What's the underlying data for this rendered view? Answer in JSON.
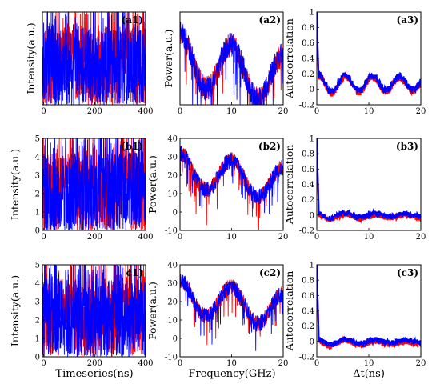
{
  "figure": {
    "xlabels": [
      "Timeseries(ns)",
      "Frequency(GHz)",
      "Δt(ns)"
    ]
  },
  "chart_data": [
    {
      "id": "a1",
      "type": "line",
      "label": "(a1)",
      "ylabel": "Intensity(a.u.)",
      "xlim": [
        -5,
        400
      ],
      "ylim": [
        0,
        4.2
      ],
      "xticks": [
        0,
        200,
        400
      ],
      "yticks": [],
      "style": "noise-time",
      "series": [
        {
          "color": "#ff0000"
        },
        {
          "color": "#0000ff"
        }
      ]
    },
    {
      "id": "a2",
      "type": "line",
      "label": "(a2)",
      "ylabel": "Power(a.u.)",
      "xlim": [
        0,
        20
      ],
      "ylim": [
        6,
        40
      ],
      "xticks": [
        0,
        10,
        20
      ],
      "yticks": [],
      "style": "spectrum",
      "series": [
        {
          "color": "#ff0000"
        },
        {
          "color": "#0000ff"
        }
      ]
    },
    {
      "id": "a3",
      "type": "line",
      "label": "(a3)",
      "ylabel": "Autocorrelation",
      "xlim": [
        0,
        20
      ],
      "ylim": [
        -0.2,
        1
      ],
      "xticks": [
        0,
        10,
        20
      ],
      "yticks": [
        -0.2,
        0,
        0.2,
        0.4,
        0.6,
        0.8,
        1
      ],
      "style": "acf-strong",
      "series": [
        {
          "color": "#ff0000"
        },
        {
          "color": "#0000ff"
        }
      ]
    },
    {
      "id": "b1",
      "type": "line",
      "label": "(b1)",
      "ylabel": "Intensity(a.u.)",
      "xlim": [
        -5,
        400
      ],
      "ylim": [
        0,
        5
      ],
      "xticks": [
        0,
        200,
        400
      ],
      "yticks": [
        0,
        1,
        2,
        3,
        4,
        5
      ],
      "style": "noise-time",
      "series": [
        {
          "color": "#ff0000"
        },
        {
          "color": "#0000ff"
        }
      ]
    },
    {
      "id": "b2",
      "type": "line",
      "label": "(b2)",
      "ylabel": "Power(a.u.)",
      "xlim": [
        0,
        20
      ],
      "ylim": [
        -10,
        40
      ],
      "xticks": [
        0,
        10,
        20
      ],
      "yticks": [
        -10,
        0,
        10,
        20,
        30,
        40
      ],
      "style": "spectrum",
      "series": [
        {
          "color": "#ff0000"
        },
        {
          "color": "#0000ff"
        }
      ]
    },
    {
      "id": "b3",
      "type": "line",
      "label": "(b3)",
      "ylabel": "Autocorrelation",
      "xlim": [
        0,
        20
      ],
      "ylim": [
        -0.2,
        1
      ],
      "xticks": [
        0,
        10,
        20
      ],
      "yticks": [
        -0.2,
        0,
        0.2,
        0.4,
        0.6,
        0.8,
        1
      ],
      "style": "acf-weak",
      "series": [
        {
          "color": "#ff0000"
        },
        {
          "color": "#0000ff"
        }
      ]
    },
    {
      "id": "c1",
      "type": "line",
      "label": "c1)",
      "ylabel": "Intensity(a.u.)",
      "xlim": [
        -5,
        400
      ],
      "ylim": [
        0,
        5
      ],
      "xticks": [
        0,
        200,
        400
      ],
      "yticks": [
        0,
        1,
        2,
        3,
        4,
        5
      ],
      "style": "noise-time",
      "series": [
        {
          "color": "#ff0000"
        },
        {
          "color": "#0000ff"
        }
      ]
    },
    {
      "id": "c2",
      "type": "line",
      "label": "(c2)",
      "ylabel": "Power(a.u.)",
      "xlim": [
        0,
        20
      ],
      "ylim": [
        -10,
        40
      ],
      "xticks": [
        0,
        10,
        20
      ],
      "yticks": [
        -10,
        0,
        10,
        20,
        30,
        40
      ],
      "style": "spectrum",
      "series": [
        {
          "color": "#ff0000"
        },
        {
          "color": "#0000ff"
        }
      ]
    },
    {
      "id": "c3",
      "type": "line",
      "label": "(c3)",
      "ylabel": "Autocorrelation",
      "xlim": [
        0,
        20
      ],
      "ylim": [
        -0.2,
        1
      ],
      "xticks": [
        0,
        10,
        20
      ],
      "yticks": [
        -0.2,
        0,
        0.2,
        0.4,
        0.6,
        0.8,
        1
      ],
      "style": "acf-weak",
      "series": [
        {
          "color": "#ff0000"
        },
        {
          "color": "#0000ff"
        }
      ]
    }
  ]
}
